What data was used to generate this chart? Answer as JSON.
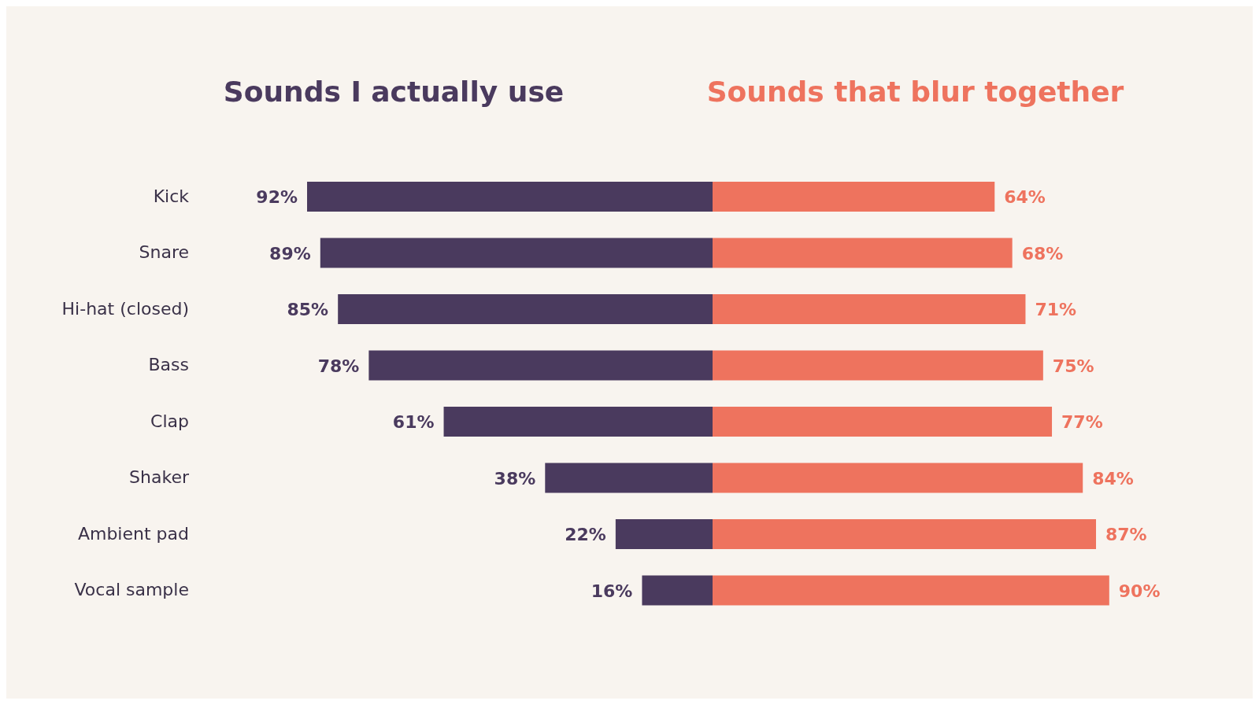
{
  "chart_data": [
    {
      "type": "bar",
      "orientation": "horizontal",
      "title": "Sounds I actually use",
      "categories": [
        "Kick",
        "Snare",
        "Hi-hat (closed)",
        "Bass",
        "Clap",
        "Shaker",
        "Ambient pad",
        "Vocal sample"
      ],
      "tick_labels": "y",
      "series": [
        {
          "color": "#4a3a5e",
          "values": [
            92,
            89,
            85,
            78,
            61,
            38,
            22,
            16
          ],
          "value_labels": [
            "92%",
            "89%",
            "85%",
            "78%",
            "61%",
            "38%",
            "22%",
            "16%"
          ]
        }
      ]
    },
    {
      "type": "bar",
      "orientation": "horizontal",
      "title": "Sounds that blur together",
      "categories": [
        null,
        null,
        null,
        null,
        null,
        null,
        null,
        null
      ],
      "tick_labels": false,
      "series": [
        {
          "color": "#ee735e",
          "values": [
            64,
            68,
            71,
            75,
            77,
            84,
            87,
            90
          ],
          "value_labels": [
            "64%",
            "68%",
            "71%",
            "75%",
            "77%",
            "84%",
            "87%",
            "90%"
          ]
        }
      ]
    }
  ]
}
